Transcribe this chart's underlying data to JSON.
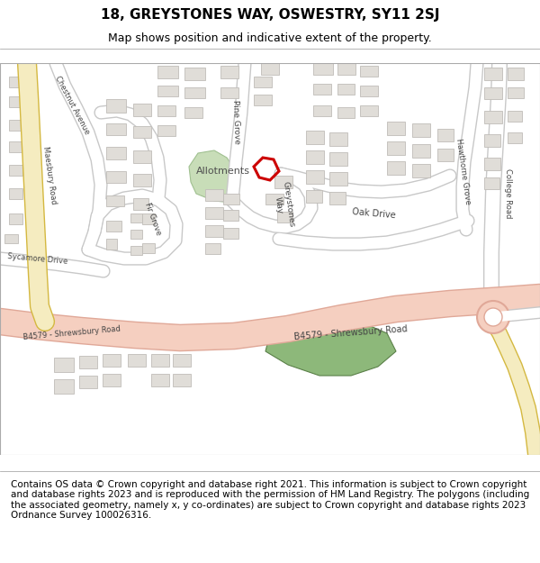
{
  "title_line1": "18, GREYSTONES WAY, OSWESTRY, SY11 2SJ",
  "title_line2": "Map shows position and indicative extent of the property.",
  "footer_text": "Contains OS data © Crown copyright and database right 2021. This information is subject to Crown copyright and database rights 2023 and is reproduced with the permission of HM Land Registry. The polygons (including the associated geometry, namely x, y co-ordinates) are subject to Crown copyright and database rights 2023 Ordnance Survey 100026316.",
  "map_bg": "#ffffff",
  "road_main_color": "#f5cfc0",
  "road_main_outline": "#e0a898",
  "road_yellow_color": "#f5ecc0",
  "road_yellow_outline": "#d4b840",
  "road_minor_color": "#ffffff",
  "road_minor_outline": "#c8c8c8",
  "building_color": "#e0ddd8",
  "building_outline": "#c0bdb8",
  "green_area_color": "#8db87a",
  "allotment_color": "#c8ddb8",
  "highlight_color": "#cc0000",
  "title_fontsize": 11,
  "subtitle_fontsize": 9,
  "footer_fontsize": 7.5,
  "label_color": "#444444",
  "label_fontsize": 6
}
